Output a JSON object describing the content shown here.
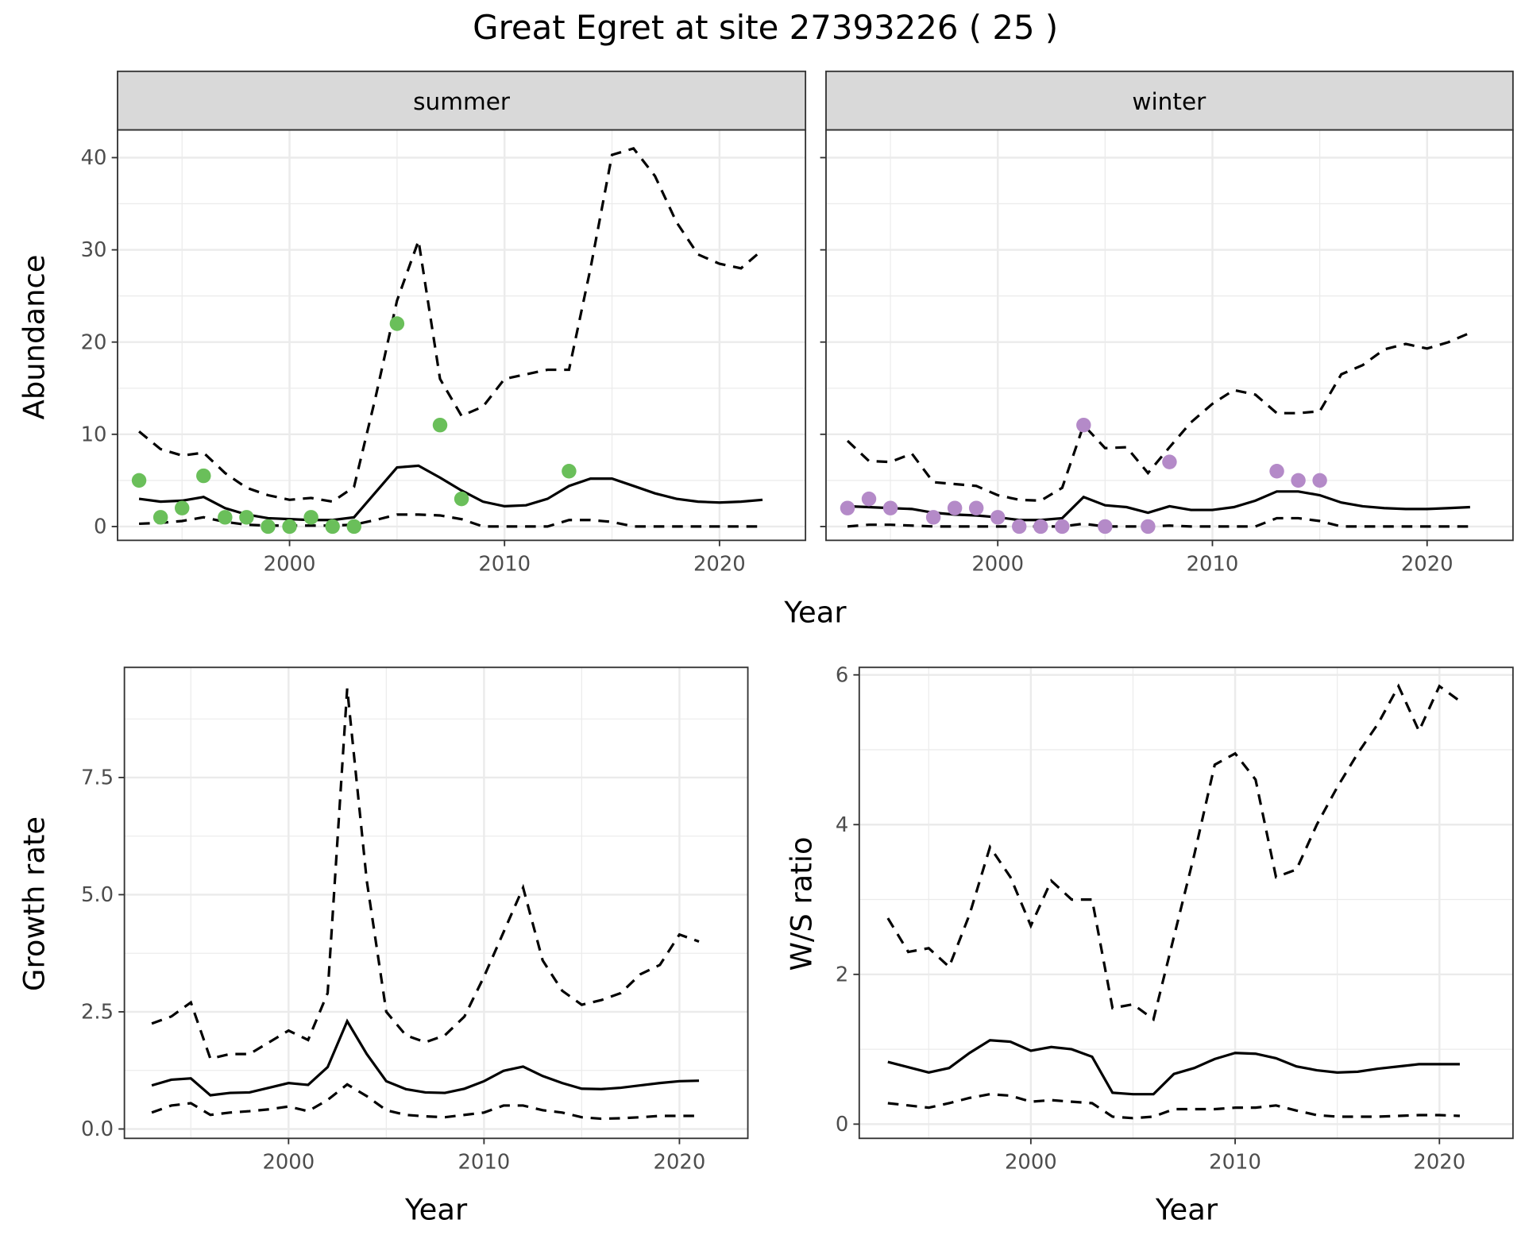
{
  "chart_data": [
    {
      "type": "line",
      "title": "Great Egret at site 27393226 ( 25 )",
      "facet": "summer",
      "xlabel": "Year",
      "ylabel": "Abundance",
      "xlim": [
        1992,
        2024
      ],
      "ylim": [
        -1.5,
        43
      ],
      "xticks": [
        2000,
        2010,
        2020
      ],
      "yticks": [
        0,
        10,
        20,
        30,
        40
      ],
      "grid": true,
      "point_color": "#6abf5a",
      "x": [
        1993,
        1994,
        1995,
        1996,
        1997,
        1998,
        1999,
        2000,
        2001,
        2002,
        2003,
        2004,
        2005,
        2006,
        2007,
        2008,
        2009,
        2010,
        2011,
        2012,
        2013,
        2014,
        2015,
        2016,
        2017,
        2018,
        2019,
        2020,
        2021,
        2022
      ],
      "series": [
        {
          "name": "mean",
          "style": "solid",
          "values": [
            3.0,
            2.7,
            2.8,
            3.2,
            2.0,
            1.3,
            0.9,
            0.8,
            0.7,
            0.7,
            1.0,
            3.7,
            6.4,
            6.6,
            5.3,
            3.9,
            2.7,
            2.2,
            2.3,
            3.0,
            4.4,
            5.2,
            5.2,
            4.4,
            3.6,
            3.0,
            2.7,
            2.6,
            2.7,
            2.9
          ]
        },
        {
          "name": "upper",
          "style": "dashed",
          "values": [
            10.3,
            8.4,
            7.7,
            8.0,
            5.8,
            4.2,
            3.4,
            2.9,
            3.1,
            2.7,
            4.3,
            14,
            24.5,
            31,
            16,
            12,
            13,
            16,
            16.5,
            17,
            17,
            28,
            40.3,
            41,
            38,
            33,
            29.5,
            28.5,
            28,
            30
          ]
        },
        {
          "name": "lower",
          "style": "dashed",
          "values": [
            0.3,
            0.4,
            0.6,
            1.0,
            0.5,
            0.2,
            0.1,
            0.1,
            0.1,
            0.1,
            0.2,
            0.7,
            1.3,
            1.3,
            1.2,
            0.8,
            0,
            0,
            0,
            0,
            0.7,
            0.7,
            0.5,
            0,
            0,
            0,
            0,
            0,
            0,
            0
          ]
        }
      ],
      "points": {
        "x": [
          1993,
          1994,
          1995,
          1996,
          1997,
          1998,
          1999,
          2000,
          2001,
          2002,
          2003,
          2005,
          2007,
          2008,
          2013
        ],
        "y": [
          5,
          1,
          2,
          5.5,
          1,
          1,
          0,
          0,
          1,
          0,
          0,
          22,
          11,
          3,
          6
        ]
      }
    },
    {
      "type": "line",
      "facet": "winter",
      "xlabel": "Year",
      "ylabel": "Abundance",
      "xlim": [
        1992,
        2024
      ],
      "ylim": [
        -1.5,
        43
      ],
      "xticks": [
        2000,
        2010,
        2020
      ],
      "yticks": [
        0,
        10,
        20,
        30,
        40
      ],
      "grid": true,
      "point_color": "#b48ac8",
      "x": [
        1993,
        1994,
        1995,
        1996,
        1997,
        1998,
        1999,
        2000,
        2001,
        2002,
        2003,
        2004,
        2005,
        2006,
        2007,
        2008,
        2009,
        2010,
        2011,
        2012,
        2013,
        2014,
        2015,
        2016,
        2017,
        2018,
        2019,
        2020,
        2021,
        2022
      ],
      "series": [
        {
          "name": "mean",
          "style": "solid",
          "values": [
            2.2,
            2.1,
            2.0,
            1.9,
            1.5,
            1.3,
            1.2,
            1.0,
            0.7,
            0.7,
            0.9,
            3.2,
            2.3,
            2.1,
            1.5,
            2.2,
            1.8,
            1.8,
            2.1,
            2.8,
            3.8,
            3.8,
            3.4,
            2.6,
            2.2,
            2.0,
            1.9,
            1.9,
            2.0,
            2.1
          ]
        },
        {
          "name": "upper",
          "style": "dashed",
          "values": [
            9.3,
            7.1,
            7.0,
            7.9,
            4.8,
            4.6,
            4.4,
            3.4,
            2.9,
            2.8,
            4.2,
            11,
            8.5,
            8.6,
            5.8,
            8.6,
            11.3,
            13.3,
            14.8,
            14.3,
            12.3,
            12.3,
            12.5,
            16.5,
            17.5,
            19.2,
            19.8,
            19.3,
            20,
            21
          ]
        },
        {
          "name": "lower",
          "style": "dashed",
          "values": [
            0,
            0.2,
            0.2,
            0.1,
            0,
            0,
            0,
            0,
            0,
            0,
            0,
            0.3,
            0,
            0,
            0,
            0.1,
            0,
            0,
            0,
            0,
            0.9,
            0.9,
            0.6,
            0,
            0,
            0,
            0,
            0,
            0,
            0
          ]
        }
      ],
      "points": {
        "x": [
          1993,
          1994,
          1995,
          1997,
          1998,
          1999,
          2000,
          2001,
          2002,
          2003,
          2004,
          2005,
          2007,
          2008,
          2013,
          2014,
          2015
        ],
        "y": [
          2,
          3,
          2,
          1,
          2,
          2,
          1,
          0,
          0,
          0,
          11,
          0,
          0,
          7,
          6,
          5,
          5
        ]
      }
    },
    {
      "type": "line",
      "xlabel": "Year",
      "ylabel": "Growth rate",
      "xlim": [
        1991.6,
        2023.5
      ],
      "ylim": [
        -0.2,
        9.85
      ],
      "xticks": [
        2000,
        2010,
        2020
      ],
      "yticks": [
        0.0,
        2.5,
        5.0,
        7.5
      ],
      "ytick_labels": [
        "0.0",
        "2.5",
        "5.0",
        "7.5"
      ],
      "grid": true,
      "x": [
        1993,
        1994,
        1995,
        1996,
        1997,
        1998,
        1999,
        2000,
        2001,
        2002,
        2003,
        2004,
        2005,
        2006,
        2007,
        2008,
        2009,
        2010,
        2011,
        2012,
        2013,
        2014,
        2015,
        2016,
        2017,
        2018,
        2019,
        2020,
        2021
      ],
      "series": [
        {
          "name": "mean",
          "style": "solid",
          "values": [
            0.93,
            1.05,
            1.08,
            0.72,
            0.77,
            0.78,
            0.88,
            0.98,
            0.94,
            1.32,
            2.3,
            1.6,
            1.02,
            0.85,
            0.78,
            0.77,
            0.86,
            1.02,
            1.24,
            1.33,
            1.13,
            0.98,
            0.86,
            0.85,
            0.88,
            0.93,
            0.98,
            1.02,
            1.03
          ]
        },
        {
          "name": "upper",
          "style": "dashed",
          "values": [
            2.25,
            2.4,
            2.7,
            1.5,
            1.6,
            1.6,
            1.85,
            2.1,
            1.9,
            2.9,
            9.4,
            5.3,
            2.5,
            2.0,
            1.85,
            2.0,
            2.4,
            3.25,
            4.2,
            5.15,
            3.6,
            2.95,
            2.65,
            2.75,
            2.9,
            3.3,
            3.5,
            4.15,
            4.0
          ]
        },
        {
          "name": "lower",
          "style": "dashed",
          "values": [
            0.35,
            0.5,
            0.55,
            0.3,
            0.35,
            0.38,
            0.42,
            0.48,
            0.38,
            0.62,
            0.95,
            0.7,
            0.4,
            0.3,
            0.27,
            0.25,
            0.3,
            0.35,
            0.5,
            0.5,
            0.4,
            0.35,
            0.25,
            0.22,
            0.23,
            0.25,
            0.28,
            0.28,
            0.28
          ]
        }
      ]
    },
    {
      "type": "line",
      "xlabel": "Year",
      "ylabel": "W/S ratio",
      "xlim": [
        1991.6,
        2023.6
      ],
      "ylim": [
        -0.19,
        6.1
      ],
      "xticks": [
        2000,
        2010,
        2020
      ],
      "yticks": [
        0,
        2,
        4,
        6
      ],
      "grid": true,
      "x": [
        1993,
        1994,
        1995,
        1996,
        1997,
        1998,
        1999,
        2000,
        2001,
        2002,
        2003,
        2004,
        2005,
        2006,
        2007,
        2008,
        2009,
        2010,
        2011,
        2012,
        2013,
        2014,
        2015,
        2016,
        2017,
        2018,
        2019,
        2020,
        2021
      ],
      "series": [
        {
          "name": "mean",
          "style": "solid",
          "values": [
            0.83,
            0.76,
            0.69,
            0.75,
            0.95,
            1.12,
            1.1,
            0.98,
            1.03,
            1.0,
            0.9,
            0.42,
            0.4,
            0.4,
            0.67,
            0.75,
            0.87,
            0.95,
            0.94,
            0.88,
            0.77,
            0.72,
            0.69,
            0.7,
            0.74,
            0.77,
            0.8,
            0.8,
            0.8
          ]
        },
        {
          "name": "upper",
          "style": "dashed",
          "values": [
            2.75,
            2.3,
            2.35,
            2.1,
            2.8,
            3.7,
            3.3,
            2.65,
            3.25,
            3.0,
            3.0,
            1.55,
            1.6,
            1.4,
            2.5,
            3.6,
            4.8,
            4.95,
            4.6,
            3.3,
            3.4,
            4.0,
            4.5,
            4.95,
            5.35,
            5.85,
            5.25,
            5.85,
            5.65
          ]
        },
        {
          "name": "lower",
          "style": "dashed",
          "values": [
            0.28,
            0.25,
            0.22,
            0.28,
            0.35,
            0.4,
            0.38,
            0.3,
            0.32,
            0.3,
            0.28,
            0.1,
            0.08,
            0.1,
            0.2,
            0.2,
            0.2,
            0.22,
            0.22,
            0.25,
            0.18,
            0.12,
            0.1,
            0.1,
            0.1,
            0.11,
            0.12,
            0.12,
            0.11
          ]
        }
      ]
    }
  ],
  "labels": {
    "title": "Great Egret at site 27393226 ( 25 )",
    "strip_summer": "summer",
    "strip_winter": "winter",
    "top_xlabel": "Year",
    "top_ylabel": "Abundance",
    "growth_xlabel": "Year",
    "growth_ylabel": "Growth rate",
    "ratio_xlabel": "Year",
    "ratio_ylabel": "W/S ratio"
  }
}
